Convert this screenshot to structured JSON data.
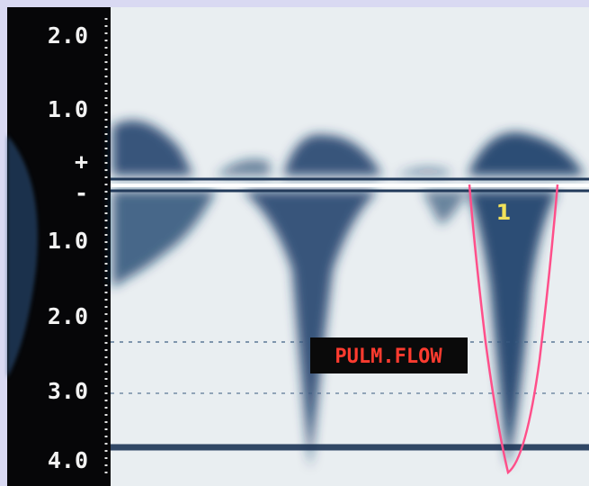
{
  "scale_labels": [
    "2.0",
    "1.0",
    "+",
    "-",
    "1.0",
    "2.0",
    "3.0",
    "4.0"
  ],
  "cursor_label": "1",
  "annotation": "PULM.FLOW"
}
